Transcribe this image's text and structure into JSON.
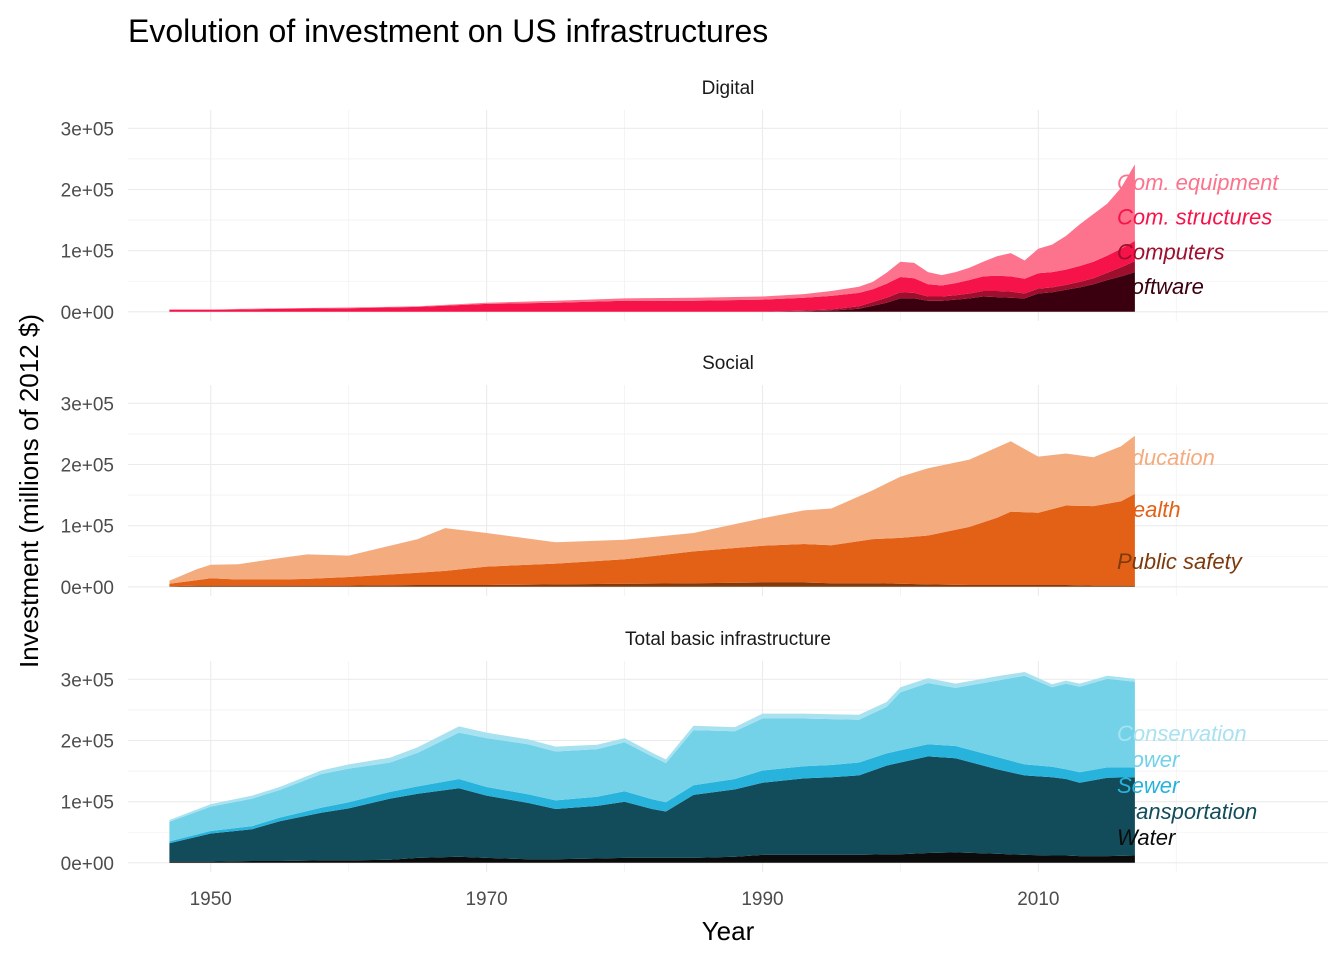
{
  "chart_data": {
    "type": "area",
    "stacked": true,
    "title": "Evolution of investment on US infrastructures",
    "xlabel": "Year",
    "ylabel": "Investment (millions of 2012 $)",
    "x_ticks": [
      "1950",
      "1970",
      "1990",
      "2010"
    ],
    "y_ticks": [
      "0e+00",
      "1e+05",
      "2e+05",
      "3e+05"
    ],
    "xlim": [
      1944,
      2031
    ],
    "ylim": [
      -15000,
      330000
    ],
    "grid": true,
    "legend": "direct labels at right end of each area",
    "panels": [
      {
        "title": "Digital",
        "x": [
          1947,
          1950,
          1955,
          1960,
          1965,
          1970,
          1975,
          1980,
          1985,
          1990,
          1993,
          1995,
          1997,
          1998,
          1999,
          2000,
          2001,
          2002,
          2003,
          2004,
          2005,
          2006,
          2007,
          2008,
          2009,
          2010,
          2011,
          2012,
          2013,
          2014,
          2015,
          2016,
          2017
        ],
        "series": [
          {
            "name": "Software",
            "color": "#3b0010",
            "values": [
              0,
              0,
              0,
              0,
              0,
              0,
              0,
              0,
              0,
              0,
              1000,
              2000,
              5000,
              10000,
              15000,
              22000,
              22000,
              18000,
              18000,
              20000,
              22000,
              25000,
              24000,
              23000,
              22000,
              30000,
              32000,
              36000,
              40000,
              45000,
              52000,
              58000,
              65000
            ]
          },
          {
            "name": "Computers",
            "color": "#9e0e2d",
            "values": [
              0,
              0,
              0,
              0,
              0,
              0,
              0,
              0,
              0,
              0,
              1000,
              2000,
              4000,
              6000,
              8000,
              10000,
              9000,
              7000,
              7000,
              7000,
              8000,
              9000,
              10000,
              10000,
              8000,
              8000,
              8000,
              8000,
              9000,
              10000,
              12000,
              15000,
              18000
            ]
          },
          {
            "name": "Com. structures",
            "color": "#f5134a",
            "values": [
              3000,
              3000,
              5000,
              6000,
              8000,
              13000,
              15000,
              18000,
              18000,
              20000,
              21000,
              22000,
              22000,
              21000,
              23000,
              25000,
              24000,
              20000,
              18000,
              20000,
              22000,
              24000,
              25000,
              25000,
              24000,
              25000,
              25000,
              25000,
              26000,
              27000,
              28000,
              30000,
              33000
            ]
          },
          {
            "name": "Com. equipment",
            "color": "#fd728c",
            "values": [
              1000,
              1000,
              1000,
              1000,
              1000,
              2000,
              3000,
              4000,
              5000,
              5000,
              6000,
              8000,
              10000,
              12000,
              18000,
              25000,
              25000,
              20000,
              17000,
              18000,
              20000,
              24000,
              32000,
              38000,
              30000,
              40000,
              45000,
              55000,
              68000,
              78000,
              85000,
              100000,
              125000
            ]
          }
        ],
        "labels": [
          {
            "name": "Com. equipment",
            "color": "#fd728c"
          },
          {
            "name": "Com. structures",
            "color": "#f5134a"
          },
          {
            "name": "Computers",
            "color": "#9e0e2d"
          },
          {
            "name": "Software",
            "color": "#3b0010"
          }
        ]
      },
      {
        "title": "Social",
        "x": [
          1947,
          1949,
          1950,
          1952,
          1955,
          1957,
          1960,
          1965,
          1967,
          1970,
          1975,
          1980,
          1985,
          1990,
          1993,
          1995,
          1998,
          2000,
          2002,
          2005,
          2007,
          2008,
          2010,
          2012,
          2014,
          2016,
          2017
        ],
        "series": [
          {
            "name": "Public safety",
            "color": "#7e3a0c",
            "values": [
              1000,
              2000,
              2000,
              2000,
              2000,
              2000,
              2000,
              3000,
              3000,
              3000,
              4000,
              5000,
              6000,
              7000,
              7000,
              6000,
              6000,
              5000,
              4000,
              3000,
              3000,
              3000,
              3000,
              3000,
              2000,
              2000,
              2000
            ]
          },
          {
            "name": "Health",
            "color": "#e36117",
            "values": [
              4000,
              9000,
              12000,
              10000,
              10000,
              11000,
              14000,
              20000,
              23000,
              30000,
              34000,
              40000,
              52000,
              60000,
              63000,
              62000,
              72000,
              75000,
              80000,
              95000,
              110000,
              120000,
              118000,
              130000,
              130000,
              138000,
              150000
            ]
          },
          {
            "name": "Education",
            "color": "#f4ab7e",
            "values": [
              5000,
              18000,
              22000,
              25000,
              35000,
              40000,
              35000,
              55000,
              70000,
              55000,
              35000,
              32000,
              30000,
              45000,
              55000,
              60000,
              80000,
              100000,
              110000,
              110000,
              115000,
              115000,
              92000,
              85000,
              80000,
              90000,
              95000
            ]
          }
        ],
        "labels": [
          {
            "name": "Education",
            "color": "#f4ab7e"
          },
          {
            "name": "Health",
            "color": "#e36117"
          },
          {
            "name": "Public safety",
            "color": "#7e3a0c"
          }
        ]
      },
      {
        "title": "Total basic infrastructure",
        "x": [
          1947,
          1950,
          1953,
          1955,
          1958,
          1960,
          1963,
          1965,
          1968,
          1970,
          1973,
          1975,
          1978,
          1980,
          1982,
          1983,
          1985,
          1988,
          1990,
          1993,
          1995,
          1997,
          1999,
          2000,
          2002,
          2004,
          2007,
          2009,
          2011,
          2012,
          2013,
          2015,
          2017
        ],
        "series": [
          {
            "name": "Water",
            "color": "#0b0b0b",
            "values": [
              2000,
              2000,
              3000,
              3000,
              4000,
              4000,
              5000,
              8000,
              10000,
              8000,
              6000,
              6000,
              7000,
              8000,
              8000,
              8000,
              8000,
              10000,
              13000,
              13000,
              13000,
              13000,
              14000,
              14000,
              16000,
              17000,
              15000,
              13000,
              12000,
              12000,
              11000,
              11000,
              12000
            ]
          },
          {
            "name": "Transportation",
            "color": "#124c5b",
            "values": [
              30000,
              46000,
              52000,
              65000,
              78000,
              85000,
              100000,
              105000,
              112000,
              102000,
              92000,
              82000,
              86000,
              92000,
              80000,
              76000,
              103000,
              110000,
              118000,
              125000,
              127000,
              130000,
              145000,
              150000,
              158000,
              154000,
              138000,
              130000,
              128000,
              125000,
              120000,
              128000,
              128000
            ]
          },
          {
            "name": "Sewer",
            "color": "#28b3dc",
            "values": [
              3000,
              4000,
              5000,
              6000,
              8000,
              10000,
              11000,
              12000,
              15000,
              14000,
              14000,
              14000,
              15000,
              17000,
              16000,
              15000,
              16000,
              17000,
              20000,
              20000,
              20000,
              21000,
              20000,
              20000,
              20000,
              20000,
              20000,
              18000,
              17000,
              16000,
              17000,
              17000,
              16000
            ]
          },
          {
            "name": "Power",
            "color": "#73d2e8",
            "values": [
              32000,
              40000,
              45000,
              45000,
              55000,
              55000,
              48000,
              55000,
              76000,
              80000,
              82000,
              80000,
              78000,
              80000,
              70000,
              64000,
              90000,
              78000,
              85000,
              78000,
              75000,
              70000,
              76000,
              95000,
              100000,
              95000,
              125000,
              145000,
              130000,
              140000,
              140000,
              145000,
              140000
            ]
          },
          {
            "name": "Conservation",
            "color": "#a8e2f0",
            "values": [
              3000,
              4000,
              5000,
              5000,
              6000,
              7000,
              8000,
              9000,
              10000,
              9000,
              8000,
              8000,
              7000,
              7000,
              6000,
              6000,
              7000,
              7000,
              8000,
              8000,
              8000,
              8000,
              8000,
              8000,
              8000,
              7000,
              7000,
              6000,
              5000,
              5000,
              5000,
              5000,
              5000
            ]
          }
        ],
        "labels": [
          {
            "name": "Conservation",
            "color": "#a8e2f0"
          },
          {
            "name": "Power",
            "color": "#73d2e8"
          },
          {
            "name": "Sewer",
            "color": "#28b3dc"
          },
          {
            "name": "Transportation",
            "color": "#124c5b"
          },
          {
            "name": "Water",
            "color": "#0b0b0b"
          }
        ]
      }
    ]
  }
}
